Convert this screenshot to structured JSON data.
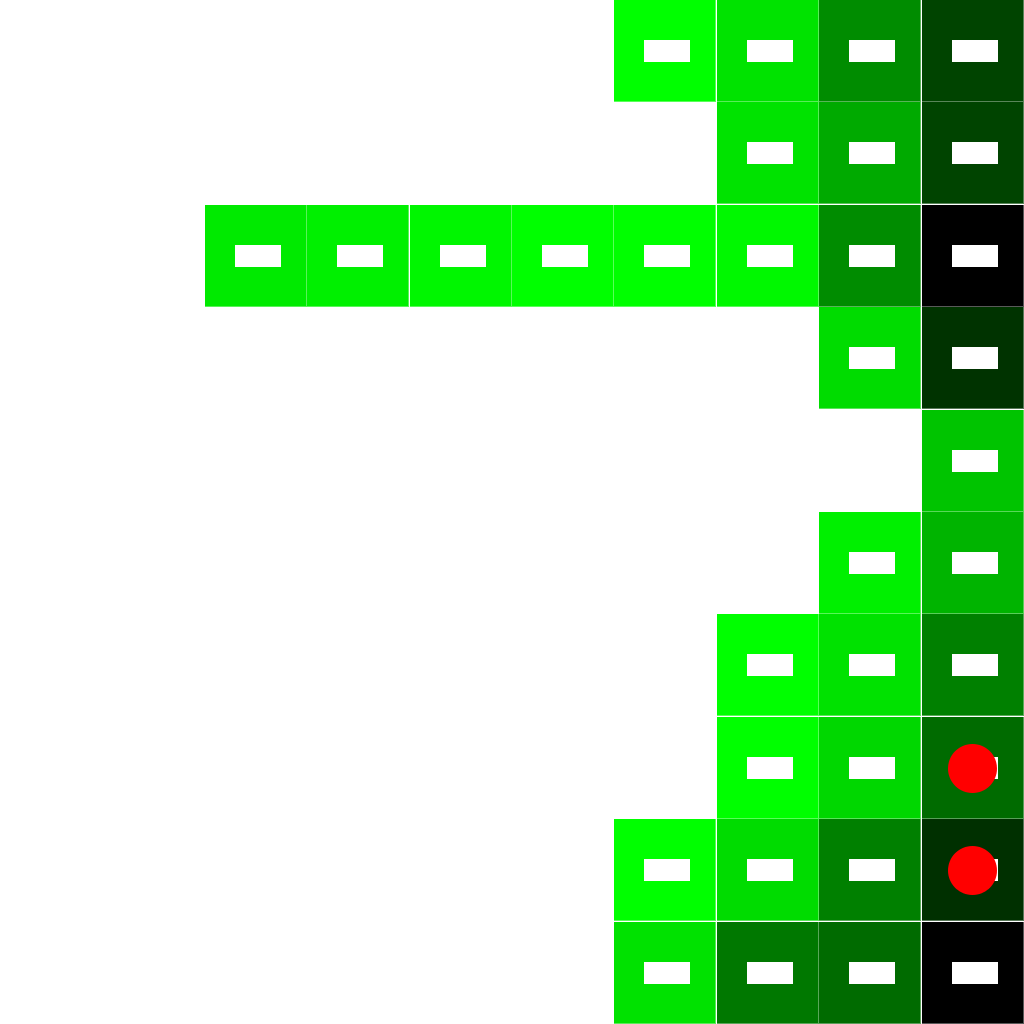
{
  "board": {
    "grid_size": 10,
    "background": "#ffffff",
    "dash_color": "#ffffff",
    "marker_color": "#ff0000",
    "cells": [
      {
        "row": 0,
        "col": 6,
        "color": "#00ff00"
      },
      {
        "row": 0,
        "col": 7,
        "color": "#00e300"
      },
      {
        "row": 0,
        "col": 8,
        "color": "#008c00"
      },
      {
        "row": 0,
        "col": 9,
        "color": "#004400"
      },
      {
        "row": 1,
        "col": 7,
        "color": "#00e300"
      },
      {
        "row": 1,
        "col": 8,
        "color": "#00aa00"
      },
      {
        "row": 1,
        "col": 9,
        "color": "#004400"
      },
      {
        "row": 2,
        "col": 2,
        "color": "#00ea00"
      },
      {
        "row": 2,
        "col": 3,
        "color": "#00f000"
      },
      {
        "row": 2,
        "col": 4,
        "color": "#00f600"
      },
      {
        "row": 2,
        "col": 5,
        "color": "#00ff00"
      },
      {
        "row": 2,
        "col": 6,
        "color": "#00ff00"
      },
      {
        "row": 2,
        "col": 7,
        "color": "#00f800"
      },
      {
        "row": 2,
        "col": 8,
        "color": "#008c00"
      },
      {
        "row": 2,
        "col": 9,
        "color": "#000000"
      },
      {
        "row": 3,
        "col": 8,
        "color": "#00dc00"
      },
      {
        "row": 3,
        "col": 9,
        "color": "#003300"
      },
      {
        "row": 4,
        "col": 9,
        "color": "#00c400"
      },
      {
        "row": 5,
        "col": 8,
        "color": "#00f000"
      },
      {
        "row": 5,
        "col": 9,
        "color": "#00b400"
      },
      {
        "row": 6,
        "col": 7,
        "color": "#00ff00"
      },
      {
        "row": 6,
        "col": 8,
        "color": "#00e200"
      },
      {
        "row": 6,
        "col": 9,
        "color": "#008000"
      },
      {
        "row": 7,
        "col": 7,
        "color": "#00ff00"
      },
      {
        "row": 7,
        "col": 8,
        "color": "#00d700"
      },
      {
        "row": 7,
        "col": 9,
        "color": "#006b00",
        "marker": true
      },
      {
        "row": 8,
        "col": 6,
        "color": "#00ff00"
      },
      {
        "row": 8,
        "col": 7,
        "color": "#00dc00"
      },
      {
        "row": 8,
        "col": 8,
        "color": "#008000"
      },
      {
        "row": 8,
        "col": 9,
        "color": "#003000",
        "marker": true
      },
      {
        "row": 9,
        "col": 6,
        "color": "#00e200"
      },
      {
        "row": 9,
        "col": 7,
        "color": "#007800"
      },
      {
        "row": 9,
        "col": 8,
        "color": "#006b00"
      },
      {
        "row": 9,
        "col": 9,
        "color": "#000000"
      }
    ]
  }
}
